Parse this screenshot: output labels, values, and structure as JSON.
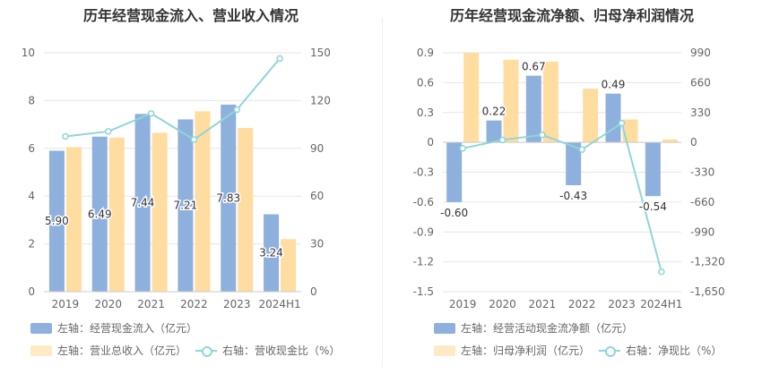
{
  "titles": {
    "left": "历年经营现金流入、营业收入情况",
    "right": "历年经营现金流净额、归母净利润情况"
  },
  "legends": {
    "left": {
      "bar1": "左轴：经营现金流入（亿元）",
      "bar2": "左轴：营业总收入（亿元）",
      "line": "右轴：营收现金比（%）"
    },
    "right": {
      "bar1": "左轴：经营活动现金流净额（亿元）",
      "bar2": "左轴：归母净利润（亿元）",
      "line": "右轴：净现比（%）"
    }
  },
  "colors": {
    "blue_bar": "#8eb0dd",
    "yellow_bar": "#ffdca0",
    "line": "#8ed6d8",
    "grid": "#e6e6e6",
    "axis_text": "#666666"
  },
  "chart_data": [
    {
      "type": "bar",
      "title": "历年经营现金流入、营业收入情况",
      "categories": [
        "2019",
        "2020",
        "2021",
        "2022",
        "2023",
        "2024H1"
      ],
      "series": [
        {
          "name": "经营现金流入（亿元）",
          "axis": "left",
          "values": [
            5.9,
            6.49,
            7.44,
            7.21,
            7.83,
            3.24
          ],
          "labels": [
            "5.90",
            "6.49",
            "7.44",
            "7.21",
            "7.83",
            "3.24"
          ]
        },
        {
          "name": "营业总收入（亿元）",
          "axis": "left",
          "values": [
            6.05,
            6.45,
            6.65,
            7.55,
            6.85,
            2.2
          ]
        },
        {
          "name": "营收现金比（%）",
          "axis": "right",
          "type": "line",
          "values": [
            97.5,
            100.6,
            111.9,
            95.5,
            114.3,
            146.4
          ]
        }
      ],
      "left_axis": {
        "ticks": [
          "0",
          "2",
          "4",
          "6",
          "8",
          "10"
        ],
        "min": 0,
        "max": 10
      },
      "right_axis": {
        "ticks": [
          "0",
          "30",
          "60",
          "90",
          "120",
          "150"
        ],
        "min": 0,
        "max": 150
      },
      "grid": true
    },
    {
      "type": "bar",
      "title": "历年经营现金流净额、归母净利润情况",
      "categories": [
        "2019",
        "2020",
        "2021",
        "2022",
        "2023",
        "2024H1"
      ],
      "series": [
        {
          "name": "经营活动现金流净额（亿元）",
          "axis": "left",
          "values": [
            -0.6,
            0.22,
            0.67,
            -0.43,
            0.49,
            -0.54
          ],
          "labels": [
            "-0.60",
            "0.22",
            "0.67",
            "-0.43",
            "0.49",
            "-0.54"
          ]
        },
        {
          "name": "归母净利润（亿元）",
          "axis": "left",
          "values": [
            0.9,
            0.83,
            0.81,
            0.54,
            0.23,
            0.03
          ]
        },
        {
          "name": "净现比（%）",
          "axis": "right",
          "type": "line",
          "values": [
            -66,
            26.5,
            82.7,
            -79.6,
            213,
            -1430
          ]
        }
      ],
      "left_axis": {
        "ticks": [
          "-1.5",
          "-1.2",
          "-0.9",
          "-0.6",
          "-0.3",
          "0",
          "0.3",
          "0.6",
          "0.9"
        ],
        "min": -1.5,
        "max": 0.9
      },
      "right_axis": {
        "ticks": [
          "-1,650",
          "-1,320",
          "-990",
          "-660",
          "-330",
          "0",
          "330",
          "660",
          "990"
        ],
        "min": -1650,
        "max": 990
      },
      "grid": true
    }
  ]
}
